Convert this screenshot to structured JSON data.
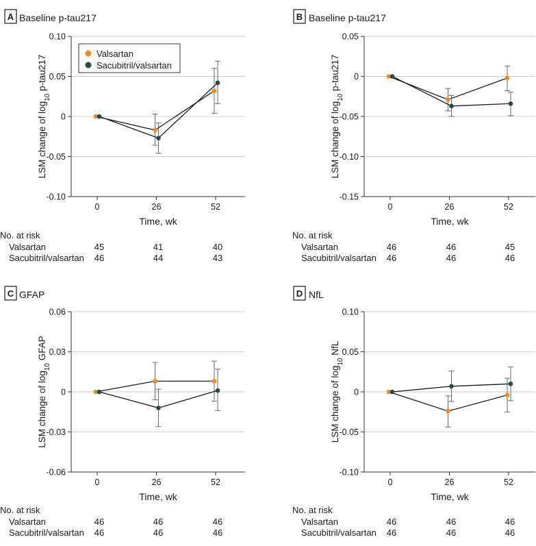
{
  "figure": {
    "x_axis_label": "Time, wk",
    "risk_heading": "No. at risk",
    "legend_labels": [
      "Valsartan",
      "Sacubitril/valsartan"
    ]
  },
  "colors": {
    "valsartan": "#f28c1c",
    "sacubitril": "#1e4d4a",
    "grid": "#cccccc",
    "axis": "#333333",
    "errorbar": "#666666"
  },
  "chart_data": [
    {
      "panel": "A",
      "type": "line",
      "title": "Baseline p-tau217",
      "ylabel": "LSM change of log10 p-tau217",
      "xlabel": "Time, wk",
      "x": [
        0,
        26,
        52
      ],
      "x_tick_labels": [
        "0",
        "26",
        "52"
      ],
      "ylim": [
        -0.1,
        0.1
      ],
      "yticks": [
        0.1,
        0.05,
        0,
        -0.05,
        -0.1
      ],
      "y_tick_labels": [
        "0.10",
        "0.05",
        "0",
        "-0.05",
        "-0.10"
      ],
      "legend": "top-left",
      "series": [
        {
          "name": "Valsartan",
          "values": [
            0,
            -0.017,
            0.032
          ],
          "err_low": [
            0,
            -0.036,
            0.004
          ],
          "err_high": [
            0,
            0.003,
            0.06
          ]
        },
        {
          "name": "Sacubitril/valsartan",
          "values": [
            0,
            -0.027,
            0.042
          ],
          "err_low": [
            0,
            -0.046,
            0.016
          ],
          "err_high": [
            0,
            -0.008,
            0.069
          ]
        }
      ],
      "risk": [
        {
          "name": "Valsartan",
          "counts": [
            "45",
            "41",
            "40"
          ]
        },
        {
          "name": "Sacubitril/valsartan",
          "counts": [
            "46",
            "44",
            "43"
          ]
        }
      ]
    },
    {
      "panel": "B",
      "type": "line",
      "title": "Baseline p-tau217",
      "ylabel": "LSM change of log10 p-tau217",
      "xlabel": "Time, wk",
      "x": [
        0,
        26,
        52
      ],
      "x_tick_labels": [
        "0",
        "26",
        "52"
      ],
      "ylim": [
        -0.15,
        0.05
      ],
      "yticks": [
        0.05,
        0,
        -0.05,
        -0.1,
        -0.15
      ],
      "y_tick_labels": [
        "0.05",
        "0",
        "-0.05",
        "-0.10",
        "-0.15"
      ],
      "series": [
        {
          "name": "Valsartan",
          "values": [
            0,
            -0.029,
            -0.002
          ],
          "err_low": [
            0,
            -0.043,
            -0.018
          ],
          "err_high": [
            0,
            -0.015,
            0.013
          ]
        },
        {
          "name": "Sacubitril/valsartan",
          "values": [
            0,
            -0.037,
            -0.034
          ],
          "err_low": [
            0,
            -0.05,
            -0.049
          ],
          "err_high": [
            0,
            -0.024,
            -0.02
          ]
        }
      ],
      "risk": [
        {
          "name": "Valsartan",
          "counts": [
            "46",
            "46",
            "45"
          ]
        },
        {
          "name": "Sacubitril/valsartan",
          "counts": [
            "46",
            "46",
            "46"
          ]
        }
      ]
    },
    {
      "panel": "C",
      "type": "line",
      "title": "GFAP",
      "ylabel": "LSM change of log10 GFAP",
      "xlabel": "Time, wk",
      "x": [
        0,
        26,
        52
      ],
      "x_tick_labels": [
        "0",
        "26",
        "52"
      ],
      "ylim": [
        -0.06,
        0.06
      ],
      "yticks": [
        0.06,
        0.03,
        0,
        -0.03,
        -0.06
      ],
      "y_tick_labels": [
        "0.06",
        "0.03",
        "0",
        "-0.03",
        "-0.06"
      ],
      "series": [
        {
          "name": "Valsartan",
          "values": [
            0,
            0.008,
            0.008
          ],
          "err_low": [
            0,
            -0.006,
            -0.007
          ],
          "err_high": [
            0,
            0.022,
            0.023
          ]
        },
        {
          "name": "Sacubitril/valsartan",
          "values": [
            0,
            -0.012,
            0.001
          ],
          "err_low": [
            0,
            -0.026,
            -0.014
          ],
          "err_high": [
            0,
            0.002,
            0.017
          ]
        }
      ],
      "risk": [
        {
          "name": "Valsartan",
          "counts": [
            "46",
            "46",
            "46"
          ]
        },
        {
          "name": "Sacubitril/valsartan",
          "counts": [
            "46",
            "46",
            "46"
          ]
        }
      ]
    },
    {
      "panel": "D",
      "type": "line",
      "title": "NfL",
      "ylabel": "LSM change of log10 NfL",
      "xlabel": "Time, wk",
      "x": [
        0,
        26,
        52
      ],
      "x_tick_labels": [
        "0",
        "26",
        "52"
      ],
      "ylim": [
        -0.1,
        0.1
      ],
      "yticks": [
        0.1,
        0.05,
        0,
        -0.05,
        -0.1
      ],
      "y_tick_labels": [
        "0.10",
        "0.05",
        "0",
        "-0.05",
        "-0.10"
      ],
      "series": [
        {
          "name": "Valsartan",
          "values": [
            0,
            -0.024,
            -0.004
          ],
          "err_low": [
            0,
            -0.044,
            -0.025
          ],
          "err_high": [
            0,
            -0.005,
            0.017
          ]
        },
        {
          "name": "Sacubitril/valsartan",
          "values": [
            0,
            0.007,
            0.01
          ],
          "err_low": [
            0,
            -0.012,
            -0.011
          ],
          "err_high": [
            0,
            0.026,
            0.031
          ]
        }
      ],
      "risk": [
        {
          "name": "Valsartan",
          "counts": [
            "46",
            "46",
            "46"
          ]
        },
        {
          "name": "Sacubitril/valsartan",
          "counts": [
            "46",
            "46",
            "46"
          ]
        }
      ]
    }
  ]
}
